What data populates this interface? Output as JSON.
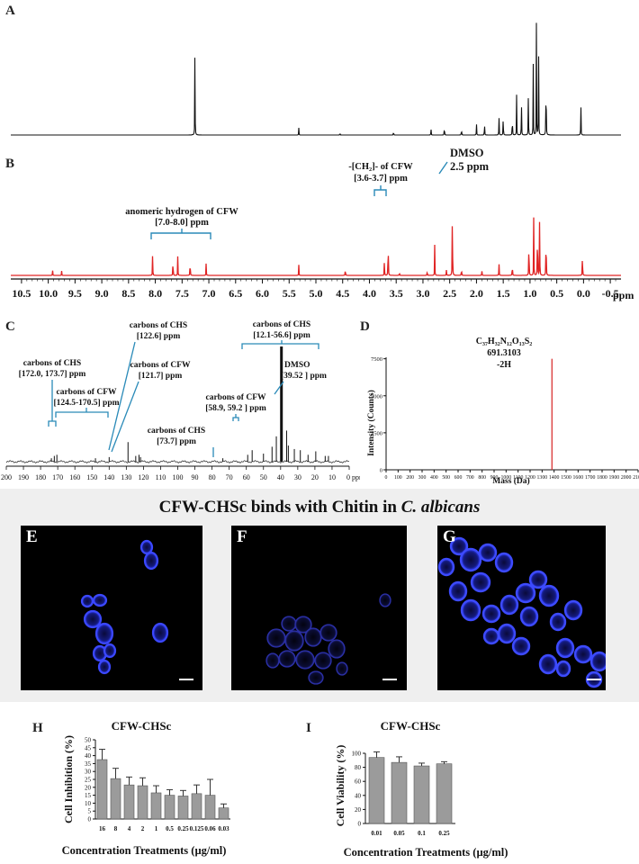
{
  "panels": {
    "A": {
      "label": "A"
    },
    "B": {
      "label": "B",
      "x_ticks": [
        "10.5",
        "10.0",
        "9.5",
        "9.0",
        "8.5",
        "8.0",
        "7.5",
        "7.0",
        "6.5",
        "6.0",
        "5.5",
        "5.0",
        "4.5",
        "4.0",
        "3.5",
        "3.0",
        "2.5",
        "2.0",
        "1.5",
        "1.0",
        "0.5",
        "0.0",
        "-0.5"
      ],
      "x_unit": "ppm",
      "annotations": {
        "anomeric_1": "anomeric hydrogen of CFW",
        "anomeric_2": "[7.0-8.0] ppm",
        "ch2_1": "-[CH₂]- of CFW",
        "ch2_2": "[3.6-3.7] ppm",
        "dmso_1": "DMSO",
        "dmso_2": "2.5 ppm"
      }
    },
    "C": {
      "label": "C",
      "x_ticks": [
        "200",
        "190",
        "180",
        "170",
        "160",
        "150",
        "140",
        "130",
        "120",
        "110",
        "100",
        "90",
        "80",
        "70",
        "60",
        "50",
        "40",
        "30",
        "20",
        "10",
        "0 ppm"
      ],
      "annotations": {
        "chs1_1": "carbons of CHS",
        "chs1_2": "[172.0, 173.7] ppm",
        "cfw1_1": "carbons of CFW",
        "cfw1_2": "[124.5-170.5] ppm",
        "chs2_1": "carbons of CHS",
        "chs2_2": "[122.6] ppm",
        "cfw2_1": "carbons of CFW",
        "cfw2_2": "[121.7] ppm",
        "chs3_1": "carbons of CHS",
        "chs3_2": "[73.7] ppm",
        "cfw3_1": "carbons of CFW",
        "cfw3_2": "[58.9, 59.2 ] ppm",
        "chs4_1": "carbons of CHS",
        "chs4_2": "[12.1-56.6] ppm",
        "dmso_1": "DMSO",
        "dmso_2": "[39.52 ] ppm"
      }
    },
    "D": {
      "label": "D",
      "ylabel": "Intensity (Counts)",
      "xlabel": "Mass (Da)",
      "y_ticks": [
        "0",
        "2500",
        "5000",
        "7500"
      ],
      "x_ticks": [
        "0",
        "100",
        "200",
        "300",
        "400",
        "500",
        "600",
        "700",
        "800",
        "900",
        "1000",
        "1100",
        "1200",
        "1300",
        "1400",
        "1500",
        "1600",
        "1700",
        "1800",
        "1900",
        "2000",
        "2100"
      ],
      "formula": "C₃₇H₃₂N₁₂O₁₃S₂",
      "mass": "691.3103",
      "note": "-2H"
    },
    "micro": {
      "title_main": "CFW-CHSc binds with Chitin in ",
      "title_italic": "C. albicans",
      "E": "E",
      "F": "F",
      "G": "G"
    },
    "H": {
      "label": "H"
    },
    "I": {
      "label": "I"
    }
  },
  "chart_data": [
    {
      "type": "line",
      "panel": "A",
      "title": "",
      "xlabel": "",
      "ylabel": "",
      "xlim": [
        10.7,
        -0.7
      ],
      "x_unit": "ppm",
      "peaks": [
        {
          "x": 7.26,
          "y": 0.86
        },
        {
          "x": 5.32,
          "y": 0.06
        },
        {
          "x": 4.55,
          "y": 0.03
        },
        {
          "x": 3.55,
          "y": 0.05
        },
        {
          "x": 2.85,
          "y": 0.08
        },
        {
          "x": 2.6,
          "y": 0.12
        },
        {
          "x": 2.28,
          "y": 0.09
        },
        {
          "x": 2.0,
          "y": 0.11
        },
        {
          "x": 1.85,
          "y": 0.15
        },
        {
          "x": 1.58,
          "y": 0.2
        },
        {
          "x": 1.5,
          "y": 0.24
        },
        {
          "x": 1.33,
          "y": 0.26
        },
        {
          "x": 1.25,
          "y": 0.33
        },
        {
          "x": 1.16,
          "y": 0.38
        },
        {
          "x": 1.03,
          "y": 0.47
        },
        {
          "x": 0.94,
          "y": 0.6
        },
        {
          "x": 0.88,
          "y": 0.93
        },
        {
          "x": 0.84,
          "y": 0.87
        },
        {
          "x": 0.7,
          "y": 0.89
        },
        {
          "x": 0.05,
          "y": 0.34
        }
      ]
    },
    {
      "type": "line",
      "panel": "B",
      "title": "",
      "xlabel": "ppm",
      "ylabel": "",
      "xlim": [
        10.7,
        -0.7
      ],
      "peaks": [
        {
          "x": 9.92,
          "y": 0.07
        },
        {
          "x": 9.75,
          "y": 0.04
        },
        {
          "x": 8.05,
          "y": 0.27
        },
        {
          "x": 7.67,
          "y": 0.25
        },
        {
          "x": 7.58,
          "y": 0.2
        },
        {
          "x": 7.35,
          "y": 0.24
        },
        {
          "x": 7.05,
          "y": 0.14
        },
        {
          "x": 5.32,
          "y": 0.1
        },
        {
          "x": 4.45,
          "y": 0.11
        },
        {
          "x": 3.72,
          "y": 0.2
        },
        {
          "x": 3.65,
          "y": 0.57
        },
        {
          "x": 3.44,
          "y": 0.05
        },
        {
          "x": 2.92,
          "y": 0.07
        },
        {
          "x": 2.78,
          "y": 0.29
        },
        {
          "x": 2.56,
          "y": 0.08
        },
        {
          "x": 2.45,
          "y": 1.0
        },
        {
          "x": 2.28,
          "y": 0.11
        },
        {
          "x": 1.9,
          "y": 0.07
        },
        {
          "x": 1.58,
          "y": 0.15
        },
        {
          "x": 1.33,
          "y": 0.18
        },
        {
          "x": 1.02,
          "y": 0.59
        },
        {
          "x": 0.93,
          "y": 0.61
        },
        {
          "x": 0.86,
          "y": 0.79
        },
        {
          "x": 0.82,
          "y": 0.72
        },
        {
          "x": 0.7,
          "y": 0.71
        },
        {
          "x": 0.02,
          "y": 0.34
        }
      ]
    },
    {
      "type": "line",
      "panel": "C",
      "title": "",
      "xlabel": "",
      "ylabel": "",
      "xlim": [
        200,
        0
      ],
      "x_unit": "ppm",
      "peaks": [
        {
          "x": 173.7,
          "y": 0.03
        },
        {
          "x": 172.0,
          "y": 0.05
        },
        {
          "x": 170.5,
          "y": 0.06
        },
        {
          "x": 148.0,
          "y": 0.03
        },
        {
          "x": 140.0,
          "y": 0.04
        },
        {
          "x": 129.0,
          "y": 0.17
        },
        {
          "x": 124.5,
          "y": 0.05
        },
        {
          "x": 122.6,
          "y": 0.06
        },
        {
          "x": 121.7,
          "y": 0.04
        },
        {
          "x": 73.7,
          "y": 0.03
        },
        {
          "x": 59.2,
          "y": 0.06
        },
        {
          "x": 56.6,
          "y": 0.1
        },
        {
          "x": 50.0,
          "y": 0.07
        },
        {
          "x": 45.0,
          "y": 0.13
        },
        {
          "x": 42.5,
          "y": 0.22
        },
        {
          "x": 39.52,
          "y": 1.0
        },
        {
          "x": 36.5,
          "y": 0.27
        },
        {
          "x": 35.5,
          "y": 0.14
        },
        {
          "x": 32.0,
          "y": 0.11
        },
        {
          "x": 28.5,
          "y": 0.1
        },
        {
          "x": 24.0,
          "y": 0.06
        },
        {
          "x": 19.5,
          "y": 0.09
        },
        {
          "x": 14.0,
          "y": 0.05
        },
        {
          "x": 12.1,
          "y": 0.05
        }
      ]
    },
    {
      "type": "bar",
      "panel": "D",
      "title": "",
      "xlabel": "Mass (Da)",
      "ylabel": "Intensity (Counts)",
      "xlim": [
        0,
        2100
      ],
      "ylim": [
        0,
        7600
      ],
      "x": [
        1382
      ],
      "values": [
        7500
      ]
    },
    {
      "type": "bar",
      "panel": "H",
      "title": "CFW-CHSc",
      "xlabel": "Concentration Treatments (µg/ml)",
      "ylabel": "Cell Inhibition (%)",
      "ylim": [
        0,
        50
      ],
      "y_ticks": [
        0,
        5,
        10,
        15,
        20,
        25,
        30,
        35,
        40,
        45,
        50
      ],
      "categories": [
        "16",
        "8",
        "4",
        "2",
        "1",
        "0.5",
        "0.25",
        "0.125",
        "0.06",
        "0.03"
      ],
      "values": [
        37.5,
        25.5,
        21.5,
        21,
        16.5,
        15,
        14.5,
        16,
        15,
        7
      ],
      "errors": [
        6.5,
        6.5,
        5,
        5,
        4.5,
        3.5,
        3.5,
        5.5,
        10,
        2.5
      ]
    },
    {
      "type": "bar",
      "panel": "I",
      "title": "CFW-CHSc",
      "xlabel": "Concentration Treatments (µg/ml)",
      "ylabel": "Cell Viability (%)",
      "ylim": [
        0,
        100
      ],
      "y_ticks": [
        0,
        20,
        40,
        60,
        80,
        100
      ],
      "categories": [
        "0.01",
        "0.05",
        "0.1",
        "0.25"
      ],
      "values": [
        94,
        87,
        82,
        85
      ],
      "errors": [
        8,
        8,
        4,
        3
      ]
    }
  ]
}
